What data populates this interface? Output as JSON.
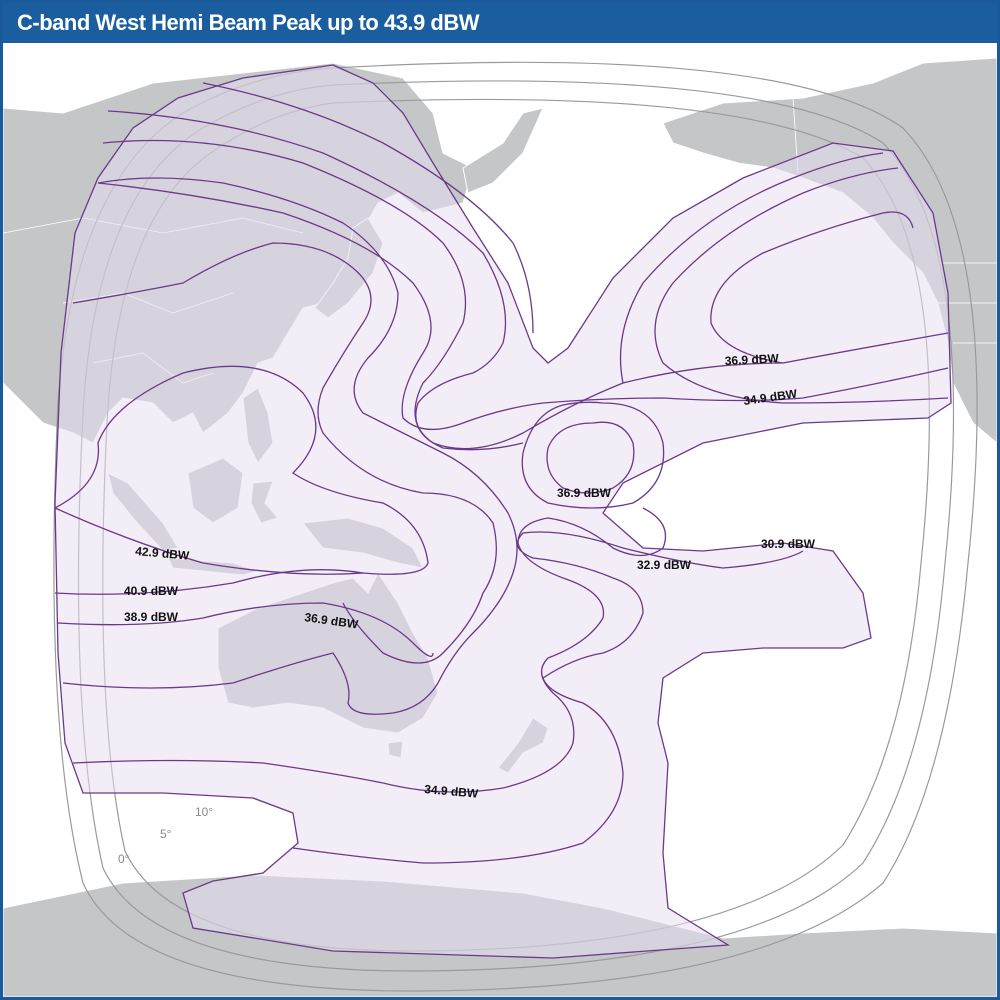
{
  "title": "C-band West Hemi Beam Peak up to 43.9 dBW",
  "contour_labels": {
    "c42_9": "42.9 dBW",
    "c40_9": "40.9 dBW",
    "c38_9": "38.9 dBW",
    "c36_9_aus": "36.9 dBW",
    "c36_9_npac": "36.9 dBW",
    "c34_9_npac": "34.9 dBW",
    "c36_9_cpac": "36.9 dBW",
    "c32_9": "32.9 dBW",
    "c30_9": "30.9 dBW",
    "c34_9_south": "34.9 dBW"
  },
  "elevation_labels": {
    "e0": "0°",
    "e5": "5°",
    "e10": "10°"
  },
  "colors": {
    "title_bar": "#1a5e9f",
    "land": "#c4c6c8",
    "coverage_fill": "#e7def0",
    "contour_line": "#6a3a8a",
    "elevation_line": "#9a9a9a"
  }
}
